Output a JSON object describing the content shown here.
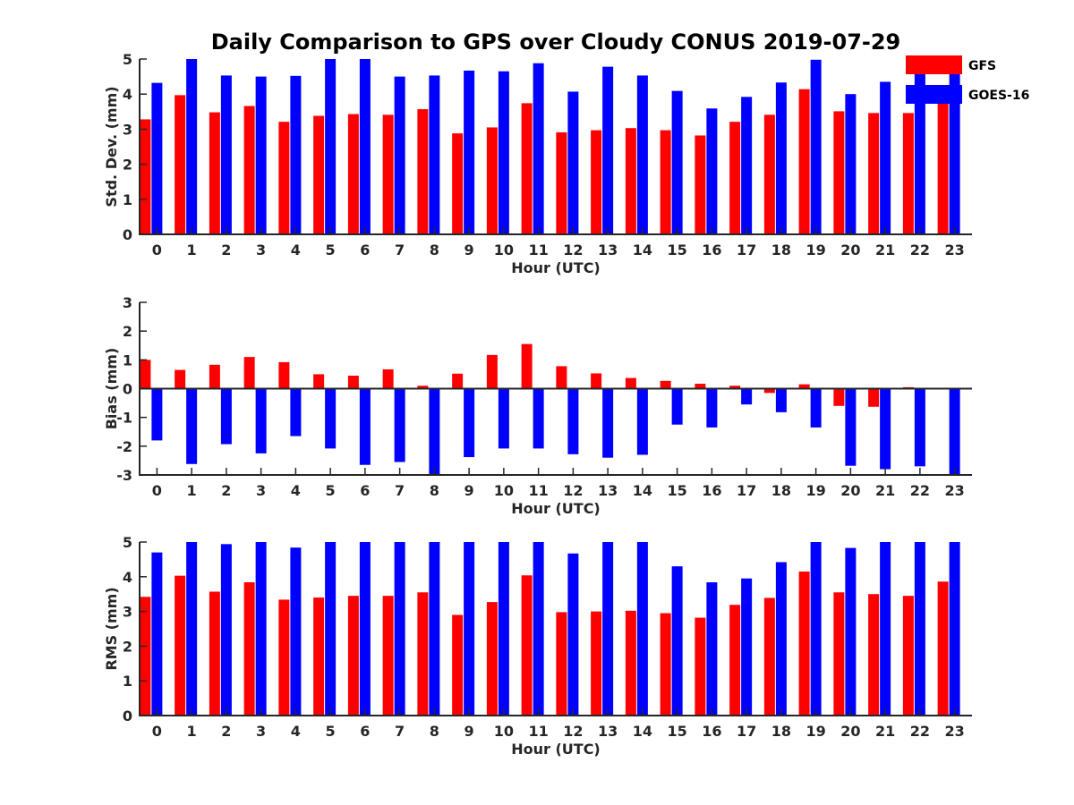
{
  "title": "Daily Comparison to GPS over Cloudy CONUS 2019-07-29",
  "legend": [
    {
      "name": "GFS",
      "color": "#ff0000"
    },
    {
      "name": "GOES-16",
      "color": "#0000ff"
    }
  ],
  "chart_data": [
    {
      "type": "bar",
      "id": "std",
      "xlabel": "Hour (UTC)",
      "ylabel": "Std. Dev. (mm)",
      "ylim": [
        0,
        5
      ],
      "yticks": [
        0,
        1,
        2,
        3,
        4,
        5
      ],
      "categories": [
        "0",
        "1",
        "2",
        "3",
        "4",
        "5",
        "6",
        "7",
        "8",
        "9",
        "10",
        "11",
        "12",
        "13",
        "14",
        "15",
        "16",
        "17",
        "18",
        "19",
        "20",
        "21",
        "22",
        "23"
      ],
      "series": [
        {
          "name": "GFS",
          "color": "#ff0000",
          "values": [
            3.28,
            3.97,
            3.48,
            3.66,
            3.21,
            3.38,
            3.43,
            3.41,
            3.57,
            2.88,
            3.05,
            3.74,
            2.91,
            2.97,
            3.03,
            2.97,
            2.82,
            3.21,
            3.41,
            4.14,
            3.51,
            3.46,
            3.46,
            3.8
          ]
        },
        {
          "name": "GOES-16",
          "color": "#0000ff",
          "values": [
            4.32,
            5.0,
            4.53,
            4.5,
            4.52,
            5.0,
            5.0,
            4.5,
            4.53,
            4.67,
            4.65,
            4.88,
            4.07,
            4.78,
            4.53,
            4.09,
            3.59,
            3.92,
            4.33,
            4.98,
            4.0,
            4.35,
            4.6,
            4.6
          ]
        }
      ]
    },
    {
      "type": "bar",
      "id": "bias",
      "xlabel": "Hour (UTC)",
      "ylabel": "Bias (mm)",
      "ylim": [
        -3,
        3
      ],
      "yticks": [
        -3,
        -2,
        -1,
        0,
        1,
        2,
        3
      ],
      "categories": [
        "0",
        "1",
        "2",
        "3",
        "4",
        "5",
        "6",
        "7",
        "8",
        "9",
        "10",
        "11",
        "12",
        "13",
        "14",
        "15",
        "16",
        "17",
        "18",
        "19",
        "20",
        "21",
        "22",
        "23"
      ],
      "series": [
        {
          "name": "GFS",
          "color": "#ff0000",
          "values": [
            1.0,
            0.65,
            0.83,
            1.1,
            0.92,
            0.5,
            0.45,
            0.67,
            0.1,
            0.52,
            1.17,
            1.55,
            0.78,
            0.53,
            0.37,
            0.27,
            0.17,
            0.1,
            -0.15,
            0.15,
            -0.6,
            -0.63,
            0.05,
            0.0
          ]
        },
        {
          "name": "GOES-16",
          "color": "#0000ff",
          "values": [
            -1.8,
            -2.62,
            -1.93,
            -2.25,
            -1.65,
            -2.08,
            -2.65,
            -2.55,
            -3.0,
            -2.38,
            -2.08,
            -2.08,
            -2.28,
            -2.4,
            -2.3,
            -1.25,
            -1.35,
            -0.55,
            -0.82,
            -1.35,
            -2.68,
            -2.8,
            -2.7,
            -3.0
          ]
        }
      ]
    },
    {
      "type": "bar",
      "id": "rms",
      "xlabel": "Hour (UTC)",
      "ylabel": "RMS (mm)",
      "ylim": [
        0,
        5
      ],
      "yticks": [
        0,
        1,
        2,
        3,
        4,
        5
      ],
      "categories": [
        "0",
        "1",
        "2",
        "3",
        "4",
        "5",
        "6",
        "7",
        "8",
        "9",
        "10",
        "11",
        "12",
        "13",
        "14",
        "15",
        "16",
        "17",
        "18",
        "19",
        "20",
        "21",
        "22",
        "23"
      ],
      "series": [
        {
          "name": "GFS",
          "color": "#ff0000",
          "values": [
            3.42,
            4.03,
            3.57,
            3.84,
            3.34,
            3.4,
            3.45,
            3.45,
            3.55,
            2.9,
            3.27,
            4.04,
            2.98,
            3.0,
            3.02,
            2.95,
            2.82,
            3.19,
            3.39,
            4.15,
            3.55,
            3.5,
            3.45,
            3.86
          ]
        },
        {
          "name": "GOES-16",
          "color": "#0000ff",
          "values": [
            4.7,
            5.0,
            4.94,
            5.0,
            4.84,
            5.0,
            5.0,
            5.0,
            5.0,
            5.0,
            5.0,
            5.0,
            4.67,
            5.0,
            5.0,
            4.3,
            3.84,
            3.95,
            4.42,
            5.0,
            4.83,
            5.0,
            5.0,
            5.0
          ]
        }
      ]
    }
  ]
}
